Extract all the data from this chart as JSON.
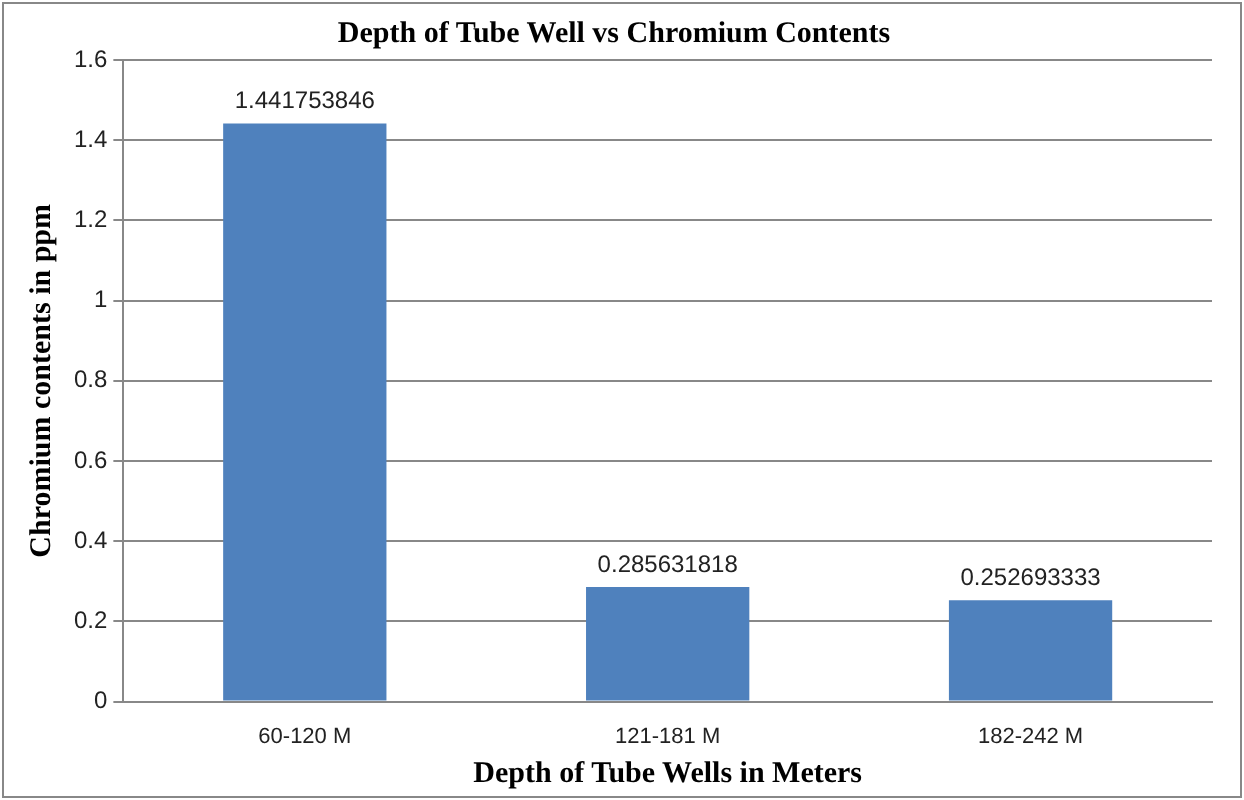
{
  "chart_data": {
    "type": "bar",
    "title": "Depth of Tube Well vs Chromium Contents",
    "xlabel": "Depth of Tube Wells in Meters",
    "ylabel": "Chromium contents in ppm",
    "categories": [
      "60-120 M",
      "121-181 M",
      "182-242 M"
    ],
    "values": [
      1.441753846,
      0.285631818,
      0.252693333
    ],
    "color": "#4f81bd",
    "ylim": [
      0,
      1.6
    ],
    "yticks": [
      0,
      0.2,
      0.4,
      0.6,
      0.8,
      1,
      1.2,
      1.4,
      1.6
    ],
    "grid": "y",
    "data_labels": true,
    "legend": false
  }
}
